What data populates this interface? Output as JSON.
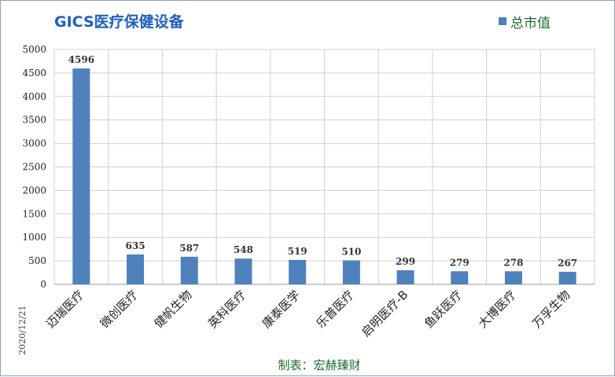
{
  "chart_data": {
    "type": "bar",
    "title": "GICS医疗保健设备",
    "legend": {
      "label": "总市值",
      "placement": "top-right"
    },
    "categories": [
      "迈瑞医疗",
      "微创医疗",
      "健帆生物",
      "英科医疗",
      "康泰医学",
      "乐普医疗",
      "启明医疗-B",
      "鱼跃医疗",
      "大博医疗",
      "万孚生物"
    ],
    "series": [
      {
        "name": "总市值",
        "values": [
          4596,
          635,
          587,
          548,
          519,
          510,
          299,
          279,
          278,
          267
        ]
      }
    ],
    "data_labels": [
      "4596",
      "635",
      "587",
      "548",
      "519",
      "510",
      "299",
      "279",
      "278",
      "267"
    ],
    "ylim": [
      0,
      5000
    ],
    "yticks": [
      0,
      500,
      1000,
      1500,
      2000,
      2500,
      3000,
      3500,
      4000,
      4500,
      5000
    ],
    "ytick_labels": [
      "0",
      "500",
      "1000",
      "1500",
      "2000",
      "2500",
      "3000",
      "3500",
      "4000",
      "4500",
      "5000"
    ],
    "grid": true,
    "colors": {
      "bar": "#4f81bd",
      "title": "#1f5fbf",
      "legend_text": "#1e6b2e",
      "grid": "#d0d0d0"
    }
  },
  "date_note": "2020/12/21",
  "source_note": "制表：宏赫臻财"
}
